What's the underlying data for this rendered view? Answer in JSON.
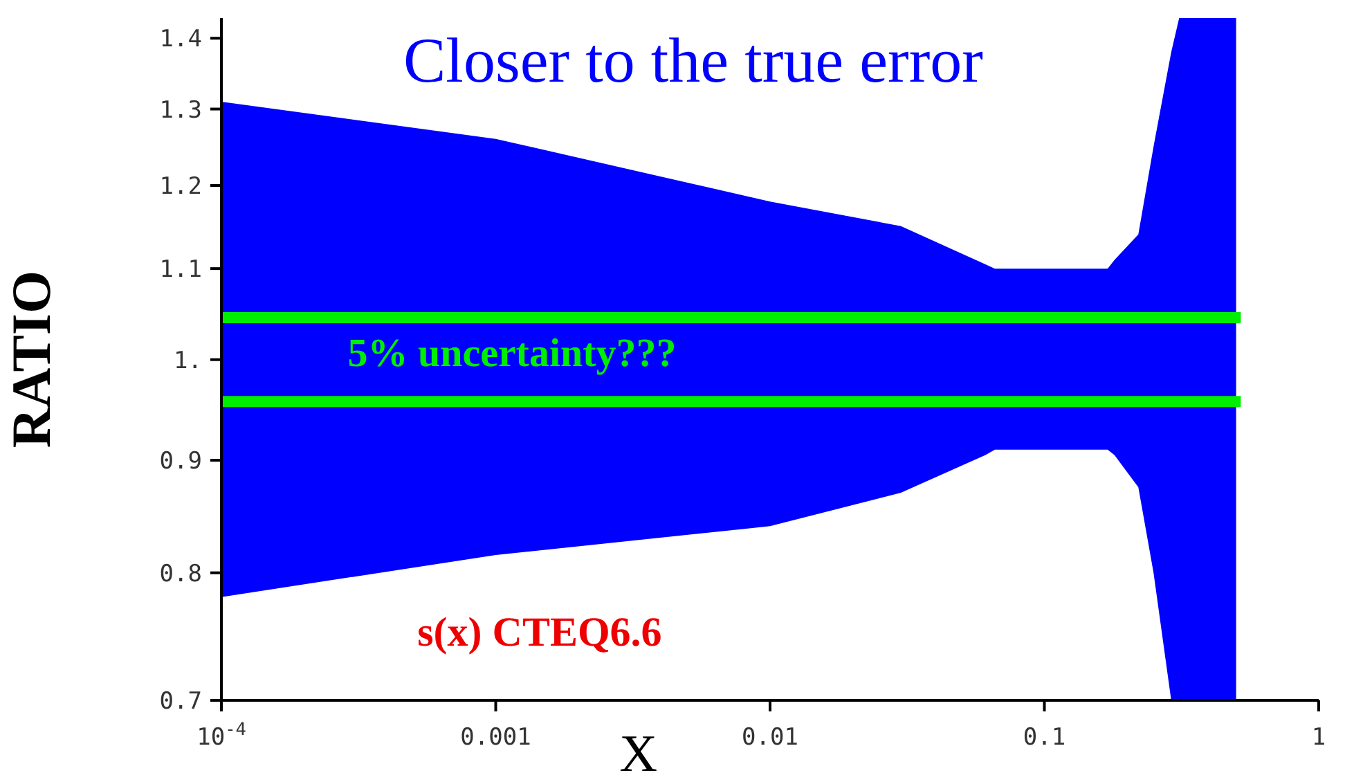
{
  "chart_data": {
    "type": "area",
    "title": "Closer to the true error",
    "xlabel": "X",
    "ylabel": "RATIO",
    "log": "xy",
    "xlim": [
      0.0001,
      1
    ],
    "xticks": [
      {
        "value": 0.0001,
        "label": "10$^{-4}$"
      },
      0.001,
      0.01,
      0.1,
      1
    ],
    "ylim": [
      0.7,
      1.43
    ],
    "yticks": [
      0.7,
      0.8,
      0.9,
      {
        "value": 1,
        "label": "1."
      },
      1.1,
      1.2,
      1.3,
      1.4
    ],
    "series": [
      {
        "color": "#0000ff",
        "x": [
          0.0001,
          0.001,
          0.01,
          0.03,
          0.061,
          0.066,
          0.17,
          0.18,
          0.22,
          0.25,
          0.29,
          0.31,
          0.5
        ],
        "values": [
          null,
          null,
          null,
          null,
          null,
          null,
          null,
          null,
          null,
          null,
          null,
          null,
          null
        ],
        "lower": [
          0.78,
          0.815,
          0.84,
          0.87,
          0.905,
          0.91,
          0.91,
          0.905,
          0.875,
          0.8,
          0.7,
          0.7,
          0.7
        ],
        "upper": [
          1.31,
          1.26,
          1.18,
          1.15,
          1.105,
          1.1,
          1.1,
          1.11,
          1.14,
          1.25,
          1.38,
          1.43,
          1.43
        ]
      },
      {
        "type": "line",
        "color": "#00ee00",
        "x": [
          0.0001,
          0.52
        ],
        "values": [
          1.045,
          1.045
        ]
      },
      {
        "type": "line",
        "color": "#00ee00",
        "x": [
          0.0001,
          0.52
        ],
        "values": [
          0.957,
          0.957
        ]
      }
    ],
    "annotations": [
      "5% uncertainty???",
      "s(x) CTEQ6.6"
    ]
  }
}
